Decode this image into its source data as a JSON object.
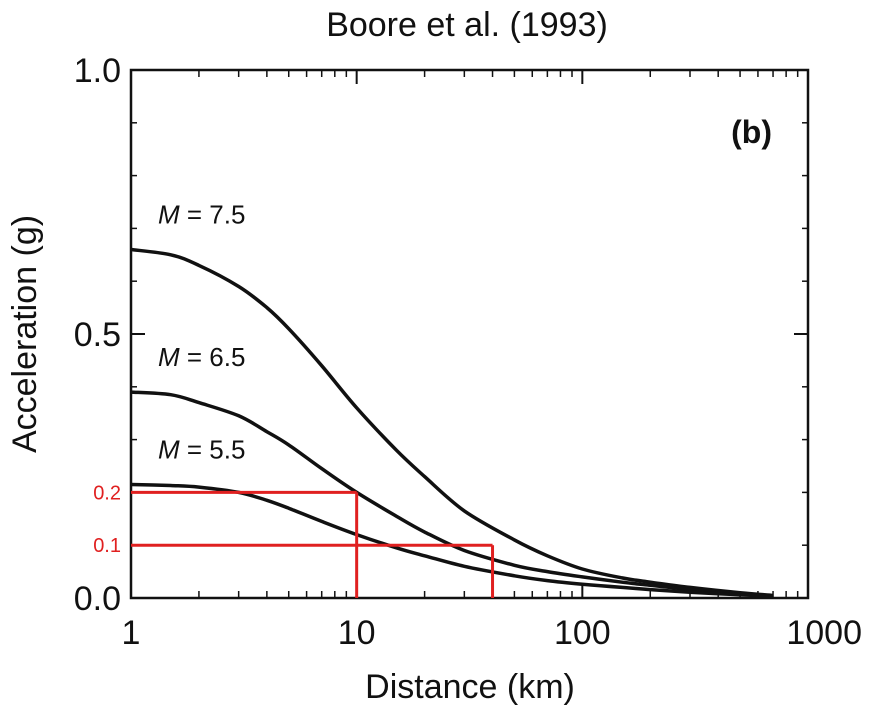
{
  "chart_data": {
    "type": "line",
    "title": "Boore et al. (1993)",
    "panel_label": "(b)",
    "xlabel": "Distance (km)",
    "ylabel": "Acceleration (g)",
    "xscale": "log",
    "xlim": [
      1,
      1000
    ],
    "ylim": [
      0.0,
      1.0
    ],
    "x_ticks": [
      {
        "value": 1,
        "label": "1"
      },
      {
        "value": 10,
        "label": "10"
      },
      {
        "value": 100,
        "label": "100"
      },
      {
        "value": 1000,
        "label": "1000"
      }
    ],
    "y_ticks": [
      {
        "value": 0.0,
        "label": "0.0"
      },
      {
        "value": 0.5,
        "label": "0.5"
      },
      {
        "value": 1.0,
        "label": "1.0"
      }
    ],
    "grid": false,
    "series": [
      {
        "name_prefix": "M",
        "name_suffix": " = 7.5",
        "color": "#111111",
        "x": [
          1,
          1.5,
          2,
          3,
          4,
          5,
          7,
          10,
          15,
          20,
          30,
          50,
          70,
          100,
          150,
          200,
          300,
          500,
          700
        ],
        "y": [
          0.66,
          0.65,
          0.63,
          0.59,
          0.55,
          0.51,
          0.44,
          0.36,
          0.28,
          0.23,
          0.165,
          0.11,
          0.08,
          0.055,
          0.038,
          0.03,
          0.02,
          0.01,
          0.005
        ]
      },
      {
        "name_prefix": "M",
        "name_suffix": " = 6.5",
        "color": "#111111",
        "x": [
          1,
          1.5,
          2,
          3,
          4,
          5,
          7,
          10,
          15,
          20,
          30,
          50,
          70,
          100,
          150,
          200,
          300,
          500,
          700
        ],
        "y": [
          0.39,
          0.385,
          0.37,
          0.345,
          0.315,
          0.29,
          0.245,
          0.2,
          0.155,
          0.125,
          0.09,
          0.062,
          0.05,
          0.04,
          0.03,
          0.024,
          0.016,
          0.008,
          0.004
        ]
      },
      {
        "name_prefix": "M",
        "name_suffix": " = 5.5",
        "color": "#111111",
        "x": [
          1,
          1.5,
          2,
          3,
          4,
          5,
          7,
          10,
          15,
          20,
          30,
          50,
          70,
          100,
          150,
          200,
          300,
          500,
          700
        ],
        "y": [
          0.215,
          0.213,
          0.21,
          0.2,
          0.185,
          0.17,
          0.145,
          0.12,
          0.095,
          0.08,
          0.06,
          0.042,
          0.033,
          0.026,
          0.02,
          0.016,
          0.011,
          0.006,
          0.003
        ]
      }
    ],
    "guides": [
      {
        "label": "0.2",
        "x": 10,
        "y": 0.2,
        "color": "#e02020"
      },
      {
        "label": "0.1",
        "x": 40,
        "y": 0.1,
        "color": "#e02020"
      }
    ]
  }
}
